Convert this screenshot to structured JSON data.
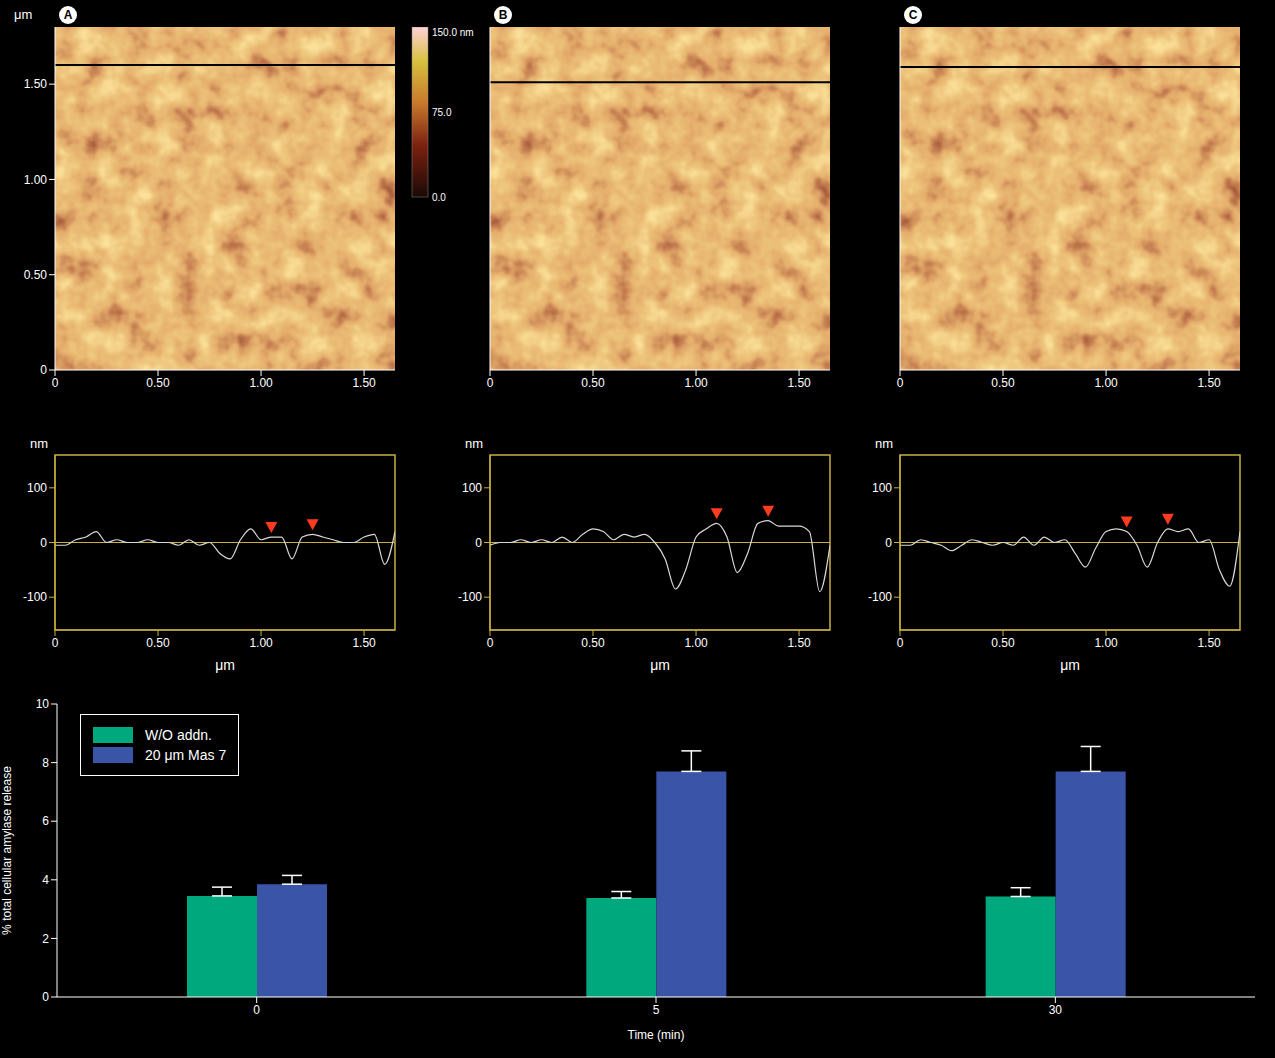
{
  "chart_data": [
    {
      "type": "image",
      "panel": "A",
      "xlim": [
        0,
        1.65
      ],
      "ylim": [
        0,
        1.8
      ],
      "xticks": [
        0,
        {
          "value": 0.5,
          "label": "0.50"
        },
        {
          "value": 1,
          "label": "1.00"
        },
        {
          "value": 1.5,
          "label": "1.50"
        }
      ],
      "yticks": [
        0,
        {
          "value": 0.5,
          "label": "0.50"
        },
        {
          "value": 1,
          "label": "1.00"
        },
        {
          "value": 1.5,
          "label": "1.50"
        }
      ],
      "y_label": "μm",
      "scan_line_y": 1.6,
      "colorbar": {
        "range": [
          0,
          150
        ],
        "ticks": [
          {
            "value": 150,
            "label": "150.0 nm"
          },
          {
            "value": 75,
            "label": "75.0"
          },
          {
            "value": 0,
            "label": "0.0"
          }
        ]
      }
    },
    {
      "type": "image",
      "panel": "B",
      "xlim": [
        0,
        1.65
      ],
      "ylim": [
        0,
        1.8
      ],
      "xticks": [
        0,
        {
          "value": 0.5,
          "label": "0.50"
        },
        {
          "value": 1,
          "label": "1.00"
        },
        {
          "value": 1.5,
          "label": "1.50"
        }
      ],
      "tick_labels": "x",
      "scan_line_y": 1.51
    },
    {
      "type": "image",
      "panel": "C",
      "xlim": [
        0,
        1.65
      ],
      "ylim": [
        0,
        1.8
      ],
      "xticks": [
        0,
        {
          "value": 0.5,
          "label": "0.50"
        },
        {
          "value": 1,
          "label": "1.00"
        },
        {
          "value": 1.5,
          "label": "1.50"
        }
      ],
      "tick_labels": "x",
      "scan_line_y": 1.59
    },
    {
      "type": "line",
      "color": "#d8d8d8",
      "x": [
        0,
        0.05,
        0.1,
        0.15,
        0.2,
        0.25,
        0.3,
        0.35,
        0.4,
        0.45,
        0.5,
        0.55,
        0.6,
        0.65,
        0.7,
        0.75,
        0.8,
        0.85,
        0.9,
        0.95,
        1.0,
        1.05,
        1.1,
        1.15,
        1.2,
        1.25,
        1.3,
        1.35,
        1.4,
        1.45,
        1.5,
        1.55,
        1.6,
        1.65
      ],
      "values": [
        -5,
        -5,
        5,
        10,
        20,
        0,
        5,
        0,
        0,
        5,
        0,
        0,
        -5,
        5,
        -5,
        0,
        -20,
        -30,
        5,
        25,
        5,
        10,
        10,
        -30,
        10,
        15,
        10,
        5,
        0,
        0,
        10,
        15,
        -40,
        20
      ],
      "markers": {
        "x": [
          1.05,
          1.25
        ],
        "y": [
          10,
          15
        ]
      },
      "baseline": 0,
      "xlim": [
        0,
        1.65
      ],
      "ylim": [
        -160,
        160
      ],
      "xticks": [
        0,
        {
          "value": 0.5,
          "label": "0.50"
        },
        {
          "value": 1,
          "label": "1.00"
        },
        {
          "value": 1.5,
          "label": "1.50"
        }
      ],
      "yticks": [
        100,
        0,
        -100
      ],
      "x_label": "μm",
      "y_label": "nm"
    },
    {
      "type": "line",
      "color": "#d8d8d8",
      "x": [
        0,
        0.05,
        0.1,
        0.15,
        0.2,
        0.25,
        0.3,
        0.35,
        0.4,
        0.45,
        0.5,
        0.55,
        0.6,
        0.65,
        0.7,
        0.75,
        0.8,
        0.85,
        0.9,
        0.95,
        1.0,
        1.05,
        1.1,
        1.15,
        1.2,
        1.25,
        1.3,
        1.35,
        1.4,
        1.45,
        1.5,
        1.55,
        1.6,
        1.65
      ],
      "values": [
        -5,
        0,
        0,
        5,
        0,
        5,
        0,
        10,
        0,
        15,
        25,
        20,
        5,
        15,
        10,
        15,
        0,
        -30,
        -85,
        -50,
        10,
        25,
        35,
        10,
        -55,
        -20,
        35,
        40,
        30,
        30,
        30,
        20,
        -90,
        -5
      ],
      "markers": {
        "x": [
          1.1,
          1.35
        ],
        "y": [
          35,
          40
        ]
      },
      "baseline": 0,
      "xlim": [
        0,
        1.65
      ],
      "ylim": [
        -160,
        160
      ],
      "xticks": [
        0,
        {
          "value": 0.5,
          "label": "0.50"
        },
        {
          "value": 1,
          "label": "1.00"
        },
        {
          "value": 1.5,
          "label": "1.50"
        }
      ],
      "yticks": [
        100,
        0,
        -100
      ],
      "x_label": "μm",
      "y_label": "nm"
    },
    {
      "type": "line",
      "color": "#d8d8d8",
      "x": [
        0,
        0.05,
        0.1,
        0.15,
        0.2,
        0.25,
        0.3,
        0.35,
        0.4,
        0.45,
        0.5,
        0.55,
        0.6,
        0.65,
        0.7,
        0.75,
        0.8,
        0.85,
        0.9,
        0.95,
        1.0,
        1.05,
        1.1,
        1.15,
        1.2,
        1.25,
        1.3,
        1.35,
        1.4,
        1.45,
        1.5,
        1.55,
        1.6,
        1.65
      ],
      "values": [
        -5,
        -5,
        5,
        0,
        -5,
        -15,
        -5,
        5,
        0,
        -5,
        0,
        -5,
        10,
        -5,
        10,
        0,
        5,
        -20,
        -45,
        -10,
        20,
        25,
        20,
        -5,
        -45,
        0,
        25,
        20,
        25,
        0,
        5,
        -50,
        -80,
        20
      ],
      "markers": {
        "x": [
          1.1,
          1.3
        ],
        "y": [
          20,
          25
        ]
      },
      "baseline": 0,
      "xlim": [
        0,
        1.65
      ],
      "ylim": [
        -160,
        160
      ],
      "xticks": [
        0,
        {
          "value": 0.5,
          "label": "0.50"
        },
        {
          "value": 1,
          "label": "1.00"
        },
        {
          "value": 1.5,
          "label": "1.50"
        }
      ],
      "yticks": [
        100,
        0,
        -100
      ],
      "x_label": "μm",
      "y_label": "nm"
    },
    {
      "type": "bar",
      "categories": [
        "0",
        "5",
        "30"
      ],
      "x_label": "Time (min)",
      "y_label": "% total cellular amylase release",
      "series": [
        {
          "name": "W/O addn.",
          "color": "#00a97d",
          "values": [
            3.45,
            3.38,
            3.43
          ],
          "errors": [
            0.3,
            0.22,
            0.3
          ]
        },
        {
          "name": "20 μm Mas 7",
          "color": "#3a55a8",
          "values": [
            3.85,
            7.7,
            7.7
          ],
          "errors": [
            0.3,
            0.7,
            0.85
          ]
        }
      ],
      "ylim": [
        0,
        10
      ],
      "yticks": [
        0,
        2,
        4,
        6,
        8,
        10
      ],
      "legend": "top-left"
    }
  ]
}
